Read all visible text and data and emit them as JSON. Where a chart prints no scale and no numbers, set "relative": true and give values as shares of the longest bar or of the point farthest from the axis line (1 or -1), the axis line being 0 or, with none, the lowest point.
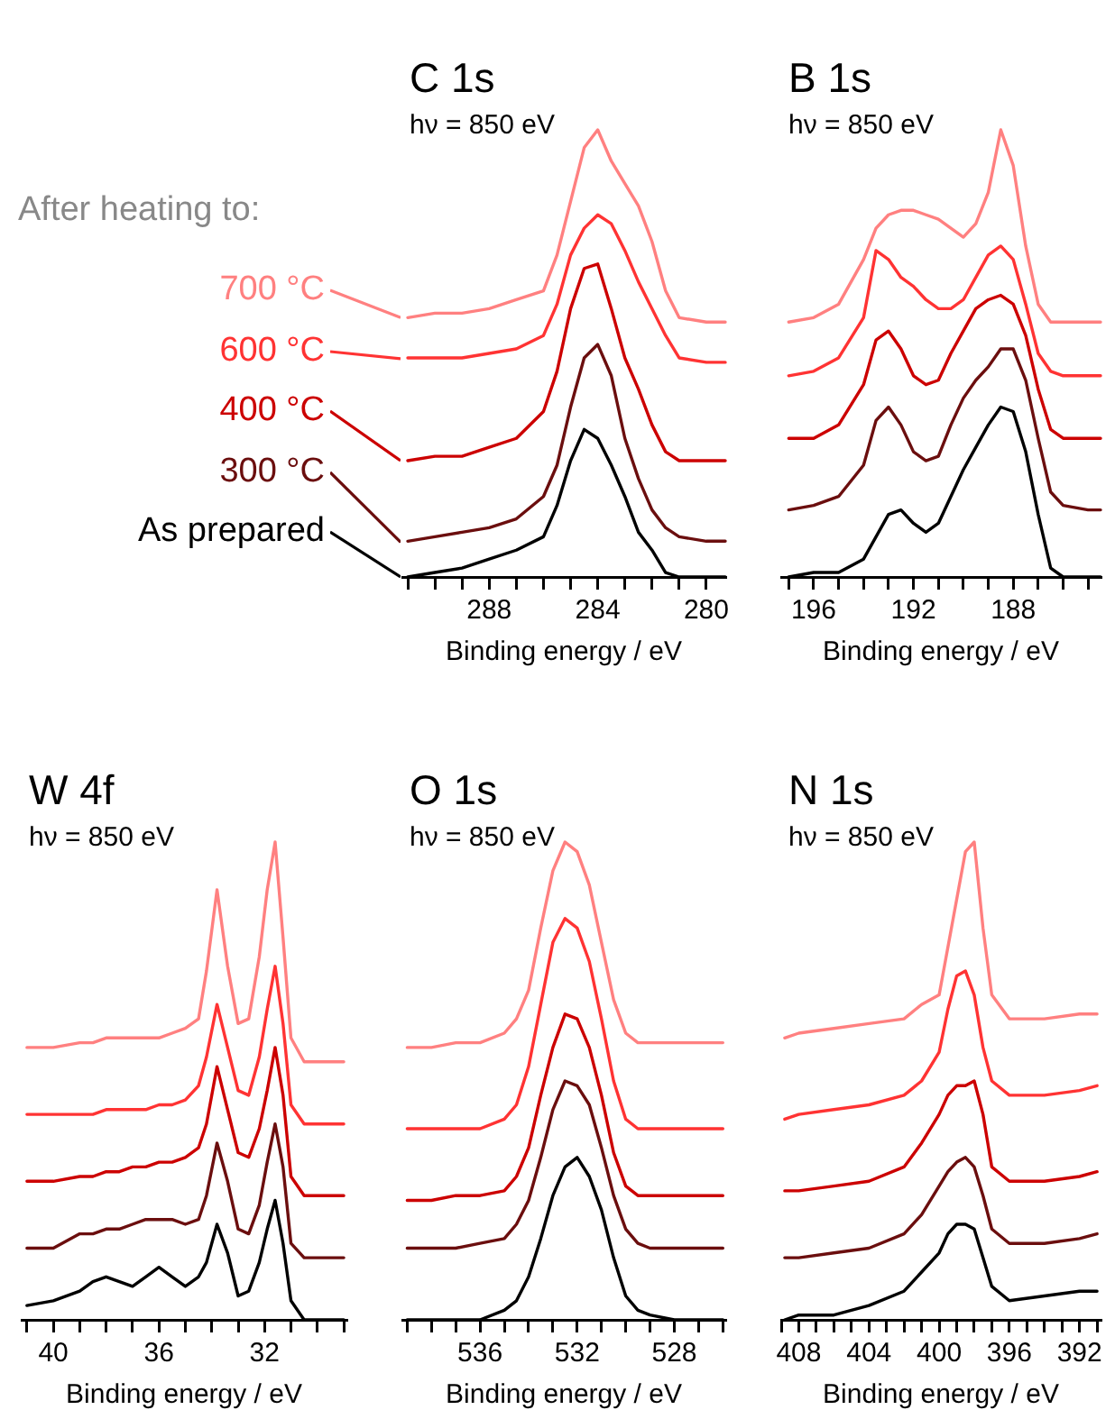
{
  "chart_data": [
    {
      "type": "line",
      "title": "C 1s",
      "subtitle": "hν = 850 eV",
      "xlabel": "Binding energy / eV",
      "relative": true,
      "tick_labels": "x",
      "legend": "left",
      "legend_title": "After heating to:",
      "xlim": [
        291.2,
        279.3
      ],
      "xticks": [
        {
          "value": 291,
          "label": null
        },
        {
          "value": 290,
          "label": null
        },
        {
          "value": 289,
          "label": null
        },
        288,
        {
          "value": 287,
          "label": null
        },
        {
          "value": 286,
          "label": null
        },
        {
          "value": 285,
          "label": null
        },
        284,
        {
          "value": 283,
          "label": null
        },
        {
          "value": 282,
          "label": null
        },
        {
          "value": 281,
          "label": null
        },
        280
      ],
      "x": [
        291,
        290,
        289,
        288,
        287,
        286,
        285.5,
        285,
        284.5,
        284,
        283.5,
        283,
        282.5,
        282,
        281.5,
        281,
        280,
        279.3
      ],
      "series": [
        {
          "name": "700 °C",
          "color": "#ff8080",
          "values": [
            0.58,
            0.59,
            0.59,
            0.6,
            0.62,
            0.64,
            0.72,
            0.84,
            0.96,
            1.0,
            0.93,
            0.88,
            0.83,
            0.75,
            0.64,
            0.58,
            0.57,
            0.57
          ]
        },
        {
          "name": "600 °C",
          "color": "#ff3333",
          "values": [
            0.49,
            0.49,
            0.49,
            0.5,
            0.51,
            0.54,
            0.61,
            0.72,
            0.78,
            0.81,
            0.79,
            0.73,
            0.66,
            0.6,
            0.54,
            0.49,
            0.48,
            0.48
          ]
        },
        {
          "name": "400 °C",
          "color": "#cc0000",
          "values": [
            0.26,
            0.27,
            0.27,
            0.29,
            0.31,
            0.37,
            0.46,
            0.6,
            0.69,
            0.7,
            0.6,
            0.49,
            0.42,
            0.34,
            0.28,
            0.26,
            0.26,
            0.26
          ]
        },
        {
          "name": "300 °C",
          "color": "#6b0e0e",
          "values": [
            0.08,
            0.09,
            0.1,
            0.11,
            0.13,
            0.18,
            0.25,
            0.38,
            0.49,
            0.52,
            0.45,
            0.31,
            0.22,
            0.15,
            0.11,
            0.09,
            0.08,
            0.08
          ]
        },
        {
          "name": "As prepared",
          "color": "#000000",
          "values": [
            0,
            0.01,
            0.02,
            0.04,
            0.06,
            0.09,
            0.16,
            0.26,
            0.33,
            0.31,
            0.25,
            0.18,
            0.1,
            0.06,
            0.01,
            0,
            0,
            0
          ]
        }
      ]
    },
    {
      "type": "line",
      "title": "B 1s",
      "subtitle": "hν = 850 eV",
      "xlabel": "Binding energy / eV",
      "relative": true,
      "tick_labels": "x",
      "xlim": [
        197.3,
        184.5
      ],
      "xticks": [
        {
          "value": 197,
          "label": null
        },
        196,
        {
          "value": 195,
          "label": null
        },
        {
          "value": 194,
          "label": null
        },
        {
          "value": 193,
          "label": null
        },
        192,
        {
          "value": 191,
          "label": null
        },
        {
          "value": 190,
          "label": null
        },
        {
          "value": 189,
          "label": null
        },
        188,
        {
          "value": 187,
          "label": null
        },
        {
          "value": 186,
          "label": null
        },
        {
          "value": 185,
          "label": null
        }
      ],
      "x": [
        197,
        196,
        195,
        194,
        193.5,
        193,
        192.5,
        192,
        191.5,
        191,
        190.5,
        190,
        189.5,
        189,
        188.5,
        188,
        187.5,
        187,
        186.5,
        186,
        185,
        184.5
      ],
      "series": [
        {
          "color": "#ff8080",
          "values": [
            0.57,
            0.58,
            0.61,
            0.71,
            0.78,
            0.81,
            0.82,
            0.82,
            0.81,
            0.8,
            0.78,
            0.76,
            0.79,
            0.86,
            1.0,
            0.92,
            0.74,
            0.61,
            0.57,
            0.57,
            0.57,
            0.57
          ]
        },
        {
          "color": "#ff3333",
          "values": [
            0.45,
            0.46,
            0.49,
            0.58,
            0.73,
            0.71,
            0.67,
            0.65,
            0.62,
            0.6,
            0.6,
            0.62,
            0.67,
            0.72,
            0.74,
            0.71,
            0.61,
            0.5,
            0.46,
            0.45,
            0.45,
            0.45
          ]
        },
        {
          "color": "#cc0000",
          "values": [
            0.31,
            0.31,
            0.34,
            0.43,
            0.53,
            0.55,
            0.51,
            0.45,
            0.43,
            0.44,
            0.5,
            0.55,
            0.6,
            0.62,
            0.63,
            0.61,
            0.54,
            0.42,
            0.33,
            0.31,
            0.31,
            0.31
          ]
        },
        {
          "color": "#6b0e0e",
          "values": [
            0.15,
            0.16,
            0.18,
            0.25,
            0.35,
            0.38,
            0.34,
            0.28,
            0.26,
            0.27,
            0.34,
            0.4,
            0.44,
            0.47,
            0.51,
            0.51,
            0.44,
            0.31,
            0.19,
            0.16,
            0.15,
            0.15
          ]
        },
        {
          "color": "#000000",
          "values": [
            0,
            0.01,
            0.01,
            0.04,
            0.09,
            0.14,
            0.15,
            0.12,
            0.1,
            0.12,
            0.18,
            0.24,
            0.29,
            0.34,
            0.38,
            0.37,
            0.28,
            0.14,
            0.02,
            0,
            0,
            0
          ]
        }
      ]
    },
    {
      "type": "line",
      "title": "W 4f",
      "subtitle": "hν = 850 eV",
      "xlabel": "Binding energy / eV",
      "relative": true,
      "tick_labels": "x",
      "xlim": [
        41.2,
        28.9
      ],
      "xticks": [
        {
          "value": 41,
          "label": null
        },
        40,
        {
          "value": 39,
          "label": null
        },
        {
          "value": 38,
          "label": null
        },
        {
          "value": 37,
          "label": null
        },
        36,
        {
          "value": 35,
          "label": null
        },
        {
          "value": 34,
          "label": null
        },
        {
          "value": 33,
          "label": null
        },
        32,
        {
          "value": 31,
          "label": null
        },
        {
          "value": 30,
          "label": null
        },
        {
          "value": 29,
          "label": null
        }
      ],
      "x": [
        41,
        40,
        39,
        38.5,
        38,
        37.5,
        37,
        36.5,
        36,
        35.5,
        35,
        34.5,
        34.2,
        33.8,
        33.4,
        33,
        32.6,
        32.2,
        31.9,
        31.6,
        31.3,
        31,
        30.5,
        30,
        29
      ],
      "series": [
        {
          "color": "#ff8080",
          "values": [
            0.57,
            0.57,
            0.58,
            0.58,
            0.59,
            0.59,
            0.59,
            0.59,
            0.59,
            0.6,
            0.61,
            0.63,
            0.73,
            0.9,
            0.74,
            0.62,
            0.63,
            0.76,
            0.9,
            1.0,
            0.8,
            0.59,
            0.54,
            0.54,
            0.54
          ]
        },
        {
          "color": "#ff3333",
          "values": [
            0.43,
            0.43,
            0.43,
            0.43,
            0.44,
            0.44,
            0.44,
            0.44,
            0.45,
            0.45,
            0.46,
            0.49,
            0.55,
            0.66,
            0.57,
            0.48,
            0.47,
            0.55,
            0.65,
            0.74,
            0.62,
            0.45,
            0.41,
            0.41,
            0.41
          ]
        },
        {
          "color": "#cc0000",
          "values": [
            0.29,
            0.29,
            0.3,
            0.3,
            0.31,
            0.31,
            0.32,
            0.32,
            0.33,
            0.33,
            0.34,
            0.36,
            0.41,
            0.53,
            0.44,
            0.35,
            0.34,
            0.4,
            0.48,
            0.57,
            0.47,
            0.3,
            0.26,
            0.26,
            0.26
          ]
        },
        {
          "color": "#6b0e0e",
          "values": [
            0.15,
            0.15,
            0.18,
            0.18,
            0.19,
            0.19,
            0.2,
            0.21,
            0.21,
            0.21,
            0.2,
            0.21,
            0.26,
            0.37,
            0.29,
            0.19,
            0.18,
            0.24,
            0.33,
            0.41,
            0.32,
            0.16,
            0.13,
            0.13,
            0.13
          ]
        },
        {
          "color": "#000000",
          "values": [
            0.03,
            0.04,
            0.06,
            0.08,
            0.09,
            0.08,
            0.07,
            0.09,
            0.11,
            0.09,
            0.07,
            0.09,
            0.12,
            0.2,
            0.14,
            0.05,
            0.06,
            0.12,
            0.19,
            0.25,
            0.16,
            0.04,
            0,
            0,
            0
          ]
        }
      ]
    },
    {
      "type": "line",
      "title": "O 1s",
      "subtitle": "hν = 850 eV",
      "xlabel": "Binding energy / eV",
      "relative": true,
      "tick_labels": "x",
      "xlim": [
        539.2,
        525.9
      ],
      "xticks": [
        {
          "value": 539,
          "label": null
        },
        {
          "value": 538,
          "label": null
        },
        {
          "value": 537,
          "label": null
        },
        536,
        {
          "value": 535,
          "label": null
        },
        {
          "value": 534,
          "label": null
        },
        {
          "value": 533,
          "label": null
        },
        532,
        {
          "value": 531,
          "label": null
        },
        {
          "value": 530,
          "label": null
        },
        {
          "value": 529,
          "label": null
        },
        528,
        {
          "value": 527,
          "label": null
        },
        {
          "value": 526,
          "label": null
        }
      ],
      "x": [
        539,
        538,
        537,
        536,
        535,
        534.5,
        534,
        533.5,
        533,
        532.5,
        532,
        531.5,
        531,
        530.5,
        530,
        529.5,
        529,
        528,
        527,
        526
      ],
      "series": [
        {
          "color": "#ff8080",
          "values": [
            0.57,
            0.57,
            0.58,
            0.58,
            0.6,
            0.63,
            0.69,
            0.82,
            0.94,
            1.0,
            0.98,
            0.91,
            0.79,
            0.67,
            0.6,
            0.58,
            0.58,
            0.58,
            0.58,
            0.58
          ]
        },
        {
          "color": "#ff3333",
          "values": [
            0.4,
            0.4,
            0.4,
            0.4,
            0.42,
            0.45,
            0.53,
            0.66,
            0.79,
            0.84,
            0.82,
            0.75,
            0.63,
            0.5,
            0.42,
            0.4,
            0.4,
            0.4,
            0.4,
            0.4
          ]
        },
        {
          "color": "#cc0000",
          "values": [
            0.25,
            0.25,
            0.26,
            0.26,
            0.27,
            0.3,
            0.36,
            0.47,
            0.57,
            0.64,
            0.63,
            0.57,
            0.47,
            0.35,
            0.28,
            0.26,
            0.26,
            0.26,
            0.26,
            0.26
          ]
        },
        {
          "color": "#6b0e0e",
          "values": [
            0.15,
            0.15,
            0.15,
            0.16,
            0.17,
            0.2,
            0.25,
            0.34,
            0.44,
            0.5,
            0.49,
            0.45,
            0.36,
            0.26,
            0.19,
            0.16,
            0.15,
            0.15,
            0.15,
            0.15
          ]
        },
        {
          "color": "#000000",
          "values": [
            0,
            0,
            0,
            0,
            0.02,
            0.04,
            0.09,
            0.17,
            0.26,
            0.32,
            0.34,
            0.3,
            0.23,
            0.13,
            0.05,
            0.02,
            0.01,
            0,
            0,
            0
          ]
        }
      ]
    },
    {
      "type": "line",
      "title": "N 1s",
      "subtitle": "hν = 850 eV",
      "xlabel": "Binding energy / eV",
      "relative": true,
      "tick_labels": "x",
      "xlim": [
        409,
        390.8
      ],
      "xticks": [
        {
          "value": 409,
          "label": null
        },
        408,
        {
          "value": 407,
          "label": null
        },
        {
          "value": 406,
          "label": null
        },
        {
          "value": 405,
          "label": null
        },
        404,
        {
          "value": 403,
          "label": null
        },
        {
          "value": 402,
          "label": null
        },
        {
          "value": 401,
          "label": null
        },
        400,
        {
          "value": 399,
          "label": null
        },
        {
          "value": 398,
          "label": null
        },
        {
          "value": 397,
          "label": null
        },
        396,
        {
          "value": 395,
          "label": null
        },
        {
          "value": 394,
          "label": null
        },
        {
          "value": 393,
          "label": null
        },
        392,
        {
          "value": 391,
          "label": null
        }
      ],
      "x": [
        408.8,
        408,
        406,
        404,
        402,
        401,
        400,
        399.5,
        399,
        398.5,
        398,
        397.5,
        397,
        396,
        394,
        392,
        391
      ],
      "series": [
        {
          "color": "#ff8080",
          "values": [
            0.59,
            0.6,
            0.61,
            0.62,
            0.63,
            0.66,
            0.68,
            0.78,
            0.88,
            0.98,
            1.0,
            0.82,
            0.68,
            0.63,
            0.63,
            0.64,
            0.64
          ]
        },
        {
          "color": "#ff3333",
          "values": [
            0.42,
            0.43,
            0.44,
            0.45,
            0.47,
            0.5,
            0.56,
            0.65,
            0.72,
            0.73,
            0.68,
            0.57,
            0.5,
            0.47,
            0.47,
            0.48,
            0.49
          ]
        },
        {
          "color": "#cc0000",
          "values": [
            0.27,
            0.27,
            0.28,
            0.29,
            0.32,
            0.37,
            0.43,
            0.47,
            0.49,
            0.49,
            0.5,
            0.43,
            0.32,
            0.29,
            0.29,
            0.3,
            0.31
          ]
        },
        {
          "color": "#6b0e0e",
          "values": [
            0.13,
            0.13,
            0.14,
            0.15,
            0.18,
            0.22,
            0.28,
            0.31,
            0.33,
            0.34,
            0.32,
            0.26,
            0.19,
            0.16,
            0.16,
            0.17,
            0.18
          ]
        },
        {
          "color": "#000000",
          "values": [
            0,
            0.01,
            0.01,
            0.03,
            0.06,
            0.1,
            0.14,
            0.18,
            0.2,
            0.2,
            0.19,
            0.13,
            0.07,
            0.04,
            0.05,
            0.06,
            0.06
          ]
        }
      ]
    }
  ]
}
